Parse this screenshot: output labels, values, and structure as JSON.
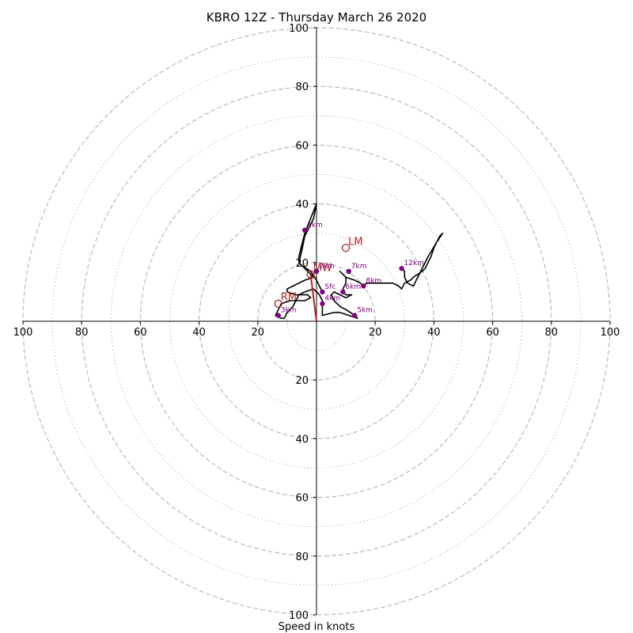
{
  "chart_data": {
    "type": "hodograph",
    "title": "KBRO 12Z - Thursday March 26 2020",
    "xlabel": "Speed in knots",
    "units": "knots",
    "range": [
      -100,
      100
    ],
    "rings_major": [
      20,
      40,
      60,
      80,
      100
    ],
    "rings_minor": [
      10,
      30,
      50,
      70,
      90
    ],
    "x_ticks": [
      {
        "value": -100,
        "label": "100"
      },
      {
        "value": -80,
        "label": "80"
      },
      {
        "value": -60,
        "label": "60"
      },
      {
        "value": -40,
        "label": "40"
      },
      {
        "value": -20,
        "label": "20"
      },
      {
        "value": 20,
        "label": "20"
      },
      {
        "value": 40,
        "label": "40"
      },
      {
        "value": 60,
        "label": "60"
      },
      {
        "value": 80,
        "label": "80"
      },
      {
        "value": 100,
        "label": "100"
      }
    ],
    "y_ticks": [
      {
        "value": 100,
        "label": "100"
      },
      {
        "value": 80,
        "label": "80"
      },
      {
        "value": 60,
        "label": "60"
      },
      {
        "value": 40,
        "label": "40"
      },
      {
        "value": 20,
        "label": "20"
      },
      {
        "value": -20,
        "label": "20"
      },
      {
        "value": -40,
        "label": "40"
      },
      {
        "value": -60,
        "label": "60"
      },
      {
        "value": -80,
        "label": "80"
      },
      {
        "value": -100,
        "label": "100"
      }
    ],
    "trace": [
      [
        2,
        10
      ],
      [
        0,
        14
      ],
      [
        -2,
        17
      ],
      [
        -5,
        19
      ],
      [
        -6,
        20
      ],
      [
        -5,
        24
      ],
      [
        -4,
        29
      ],
      [
        -3,
        31
      ],
      [
        -1,
        35
      ],
      [
        0,
        40
      ],
      [
        -2,
        35
      ],
      [
        -4,
        30
      ],
      [
        -5,
        26
      ],
      [
        -6,
        22
      ],
      [
        -6,
        20
      ],
      [
        -4,
        18
      ],
      [
        -2,
        16
      ],
      [
        -1,
        15
      ],
      [
        -4,
        14
      ],
      [
        -8,
        12
      ],
      [
        -10,
        11
      ],
      [
        -10,
        10
      ],
      [
        -7,
        9
      ],
      [
        -3,
        9
      ],
      [
        -2,
        8
      ],
      [
        -4,
        7
      ],
      [
        -9,
        7
      ],
      [
        -12,
        6
      ],
      [
        -13,
        4
      ],
      [
        -14,
        2
      ],
      [
        -12,
        1
      ],
      [
        -11,
        1
      ],
      [
        -10,
        3
      ],
      [
        -8,
        5
      ],
      [
        -7,
        7
      ],
      [
        -6,
        9
      ],
      [
        -4,
        10
      ],
      [
        -1,
        11
      ],
      [
        1,
        9
      ],
      [
        2,
        7
      ],
      [
        2,
        5
      ],
      [
        2,
        3
      ],
      [
        2,
        2
      ],
      [
        6,
        3
      ],
      [
        8,
        3
      ],
      [
        11,
        2
      ],
      [
        14,
        1
      ],
      [
        13,
        2
      ],
      [
        10,
        4
      ],
      [
        8,
        5
      ],
      [
        6,
        7
      ],
      [
        5,
        9
      ],
      [
        6,
        10
      ],
      [
        8,
        9
      ],
      [
        10,
        8
      ],
      [
        12,
        9
      ],
      [
        10,
        9
      ],
      [
        9,
        10
      ],
      [
        9,
        11
      ],
      [
        10,
        13
      ],
      [
        10,
        15
      ],
      [
        9,
        16
      ],
      [
        8,
        17
      ],
      [
        10,
        15
      ],
      [
        13,
        14
      ],
      [
        15,
        13
      ],
      [
        16,
        12
      ],
      [
        17,
        13
      ],
      [
        20,
        13
      ],
      [
        26,
        13
      ],
      [
        28,
        12
      ],
      [
        29,
        11
      ],
      [
        30,
        13
      ],
      [
        32,
        14
      ],
      [
        33,
        15
      ],
      [
        36,
        17
      ],
      [
        37,
        18
      ],
      [
        39,
        22
      ],
      [
        40,
        25
      ],
      [
        42,
        29
      ],
      [
        43,
        30
      ],
      [
        41,
        27
      ],
      [
        38,
        22
      ],
      [
        36,
        18
      ],
      [
        34,
        14
      ],
      [
        33,
        12
      ],
      [
        31,
        13
      ],
      [
        30,
        15
      ],
      [
        30,
        17
      ],
      [
        29,
        18
      ]
    ],
    "height_markers": [
      {
        "label": "Sfc",
        "u": 2,
        "v": 10
      },
      {
        "label": "1km",
        "u": -4,
        "v": 31
      },
      {
        "label": "2km",
        "u": 0,
        "v": 17
      },
      {
        "label": "3km",
        "u": -13,
        "v": 2
      },
      {
        "label": "4km",
        "u": 2,
        "v": 6
      },
      {
        "label": "5km",
        "u": 13,
        "v": 2
      },
      {
        "label": "6km",
        "u": 9,
        "v": 10
      },
      {
        "label": "7km",
        "u": 11,
        "v": 17
      },
      {
        "label": "8km",
        "u": 16,
        "v": 12
      },
      {
        "label": "12km",
        "u": 29,
        "v": 18
      }
    ],
    "storm_motions": [
      {
        "label": "LM",
        "u": 10,
        "v": 25
      },
      {
        "label": "RM",
        "u": -13,
        "v": 6
      },
      {
        "label": "MW",
        "u": -2,
        "v": 16
      }
    ],
    "colors": {
      "trace": "#000000",
      "markers": "#800080",
      "storm": "#b22222",
      "grid": "#bbbbbb",
      "axis": "#000000"
    }
  }
}
